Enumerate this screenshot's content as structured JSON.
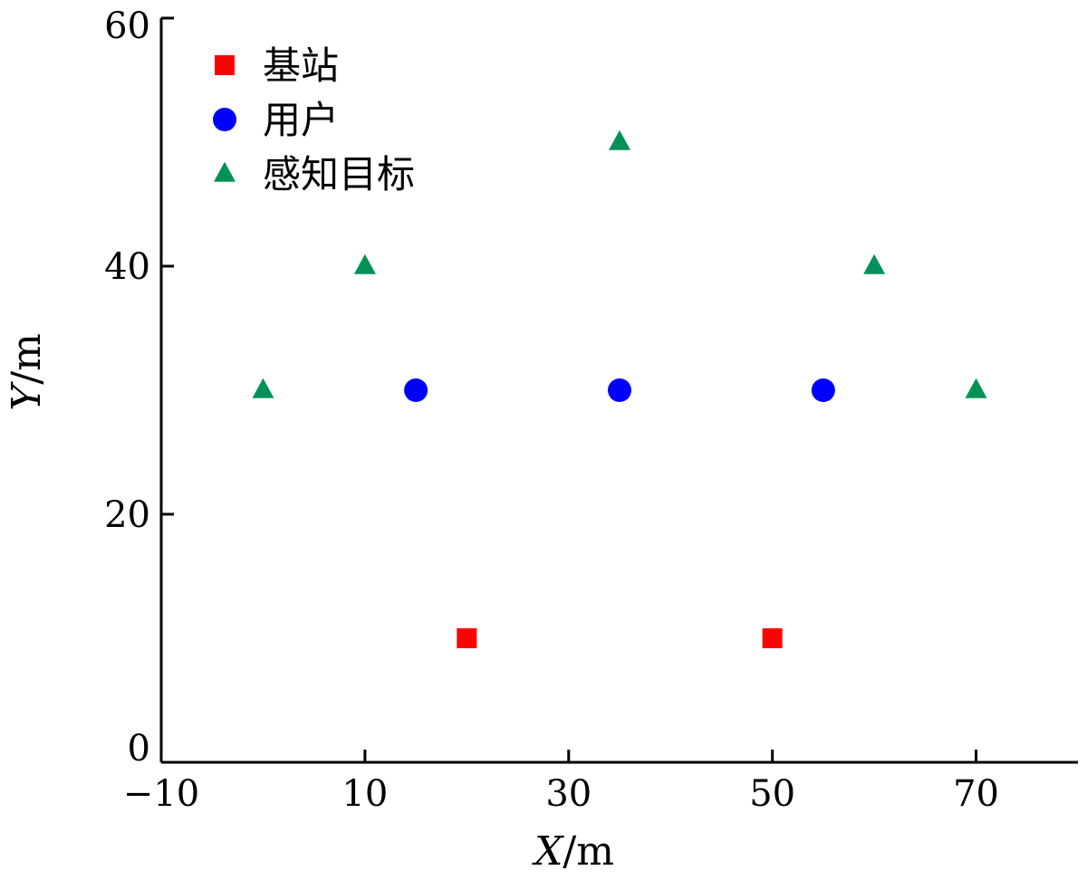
{
  "chart_data": {
    "type": "scatter",
    "xlabel": {
      "var": "X",
      "unit": "/m"
    },
    "ylabel": {
      "var": "Y",
      "unit": "/m"
    },
    "xlim": [
      -10,
      80
    ],
    "ylim": [
      0,
      60
    ],
    "xticks": [
      -10,
      10,
      30,
      50,
      70
    ],
    "yticks": [
      0,
      20,
      40,
      60
    ],
    "xtick_labels": [
      "−10",
      "10",
      "30",
      "50",
      "70"
    ],
    "ytick_labels": [
      "0",
      "20",
      "40",
      "60"
    ],
    "grid": false,
    "legend_position": "top-left",
    "series": [
      {
        "name": "基站",
        "marker": "square",
        "color": "#ff0000",
        "points": [
          {
            "x": 20,
            "y": 10
          },
          {
            "x": 50,
            "y": 10
          }
        ]
      },
      {
        "name": "用户",
        "marker": "circle",
        "color": "#0000ff",
        "points": [
          {
            "x": 15,
            "y": 30
          },
          {
            "x": 35,
            "y": 30
          },
          {
            "x": 55,
            "y": 30
          }
        ]
      },
      {
        "name": "感知目标",
        "marker": "triangle",
        "color": "#009159",
        "points": [
          {
            "x": 0,
            "y": 30
          },
          {
            "x": 10,
            "y": 40
          },
          {
            "x": 35,
            "y": 50
          },
          {
            "x": 60,
            "y": 40
          },
          {
            "x": 70,
            "y": 30
          }
        ]
      }
    ]
  }
}
